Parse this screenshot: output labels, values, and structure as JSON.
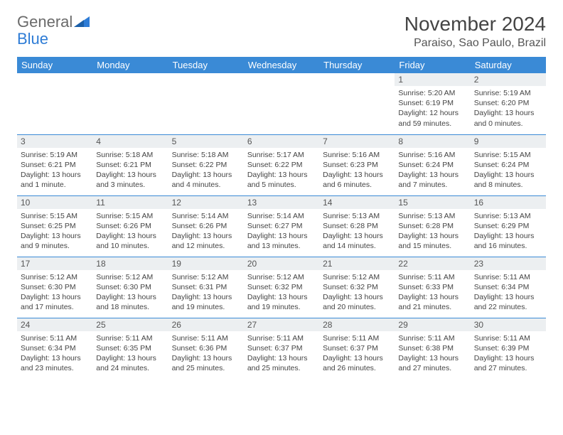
{
  "brand": {
    "part1": "General",
    "part2": "Blue"
  },
  "title": "November 2024",
  "location": "Paraiso, Sao Paulo, Brazil",
  "colors": {
    "header_bg": "#3a8ad6",
    "header_text": "#ffffff",
    "daynum_bg": "#eceff1",
    "border": "#3a8ad6",
    "brand_gray": "#6a6a6a",
    "brand_blue": "#2e7cd6"
  },
  "weekdays": [
    "Sunday",
    "Monday",
    "Tuesday",
    "Wednesday",
    "Thursday",
    "Friday",
    "Saturday"
  ],
  "weeks": [
    [
      {
        "n": "",
        "sr": "",
        "ss": "",
        "dl": "",
        "empty": true
      },
      {
        "n": "",
        "sr": "",
        "ss": "",
        "dl": "",
        "empty": true
      },
      {
        "n": "",
        "sr": "",
        "ss": "",
        "dl": "",
        "empty": true
      },
      {
        "n": "",
        "sr": "",
        "ss": "",
        "dl": "",
        "empty": true
      },
      {
        "n": "",
        "sr": "",
        "ss": "",
        "dl": "",
        "empty": true
      },
      {
        "n": "1",
        "sr": "Sunrise: 5:20 AM",
        "ss": "Sunset: 6:19 PM",
        "dl": "Daylight: 12 hours and 59 minutes."
      },
      {
        "n": "2",
        "sr": "Sunrise: 5:19 AM",
        "ss": "Sunset: 6:20 PM",
        "dl": "Daylight: 13 hours and 0 minutes."
      }
    ],
    [
      {
        "n": "3",
        "sr": "Sunrise: 5:19 AM",
        "ss": "Sunset: 6:21 PM",
        "dl": "Daylight: 13 hours and 1 minute."
      },
      {
        "n": "4",
        "sr": "Sunrise: 5:18 AM",
        "ss": "Sunset: 6:21 PM",
        "dl": "Daylight: 13 hours and 3 minutes."
      },
      {
        "n": "5",
        "sr": "Sunrise: 5:18 AM",
        "ss": "Sunset: 6:22 PM",
        "dl": "Daylight: 13 hours and 4 minutes."
      },
      {
        "n": "6",
        "sr": "Sunrise: 5:17 AM",
        "ss": "Sunset: 6:22 PM",
        "dl": "Daylight: 13 hours and 5 minutes."
      },
      {
        "n": "7",
        "sr": "Sunrise: 5:16 AM",
        "ss": "Sunset: 6:23 PM",
        "dl": "Daylight: 13 hours and 6 minutes."
      },
      {
        "n": "8",
        "sr": "Sunrise: 5:16 AM",
        "ss": "Sunset: 6:24 PM",
        "dl": "Daylight: 13 hours and 7 minutes."
      },
      {
        "n": "9",
        "sr": "Sunrise: 5:15 AM",
        "ss": "Sunset: 6:24 PM",
        "dl": "Daylight: 13 hours and 8 minutes."
      }
    ],
    [
      {
        "n": "10",
        "sr": "Sunrise: 5:15 AM",
        "ss": "Sunset: 6:25 PM",
        "dl": "Daylight: 13 hours and 9 minutes."
      },
      {
        "n": "11",
        "sr": "Sunrise: 5:15 AM",
        "ss": "Sunset: 6:26 PM",
        "dl": "Daylight: 13 hours and 10 minutes."
      },
      {
        "n": "12",
        "sr": "Sunrise: 5:14 AM",
        "ss": "Sunset: 6:26 PM",
        "dl": "Daylight: 13 hours and 12 minutes."
      },
      {
        "n": "13",
        "sr": "Sunrise: 5:14 AM",
        "ss": "Sunset: 6:27 PM",
        "dl": "Daylight: 13 hours and 13 minutes."
      },
      {
        "n": "14",
        "sr": "Sunrise: 5:13 AM",
        "ss": "Sunset: 6:28 PM",
        "dl": "Daylight: 13 hours and 14 minutes."
      },
      {
        "n": "15",
        "sr": "Sunrise: 5:13 AM",
        "ss": "Sunset: 6:28 PM",
        "dl": "Daylight: 13 hours and 15 minutes."
      },
      {
        "n": "16",
        "sr": "Sunrise: 5:13 AM",
        "ss": "Sunset: 6:29 PM",
        "dl": "Daylight: 13 hours and 16 minutes."
      }
    ],
    [
      {
        "n": "17",
        "sr": "Sunrise: 5:12 AM",
        "ss": "Sunset: 6:30 PM",
        "dl": "Daylight: 13 hours and 17 minutes."
      },
      {
        "n": "18",
        "sr": "Sunrise: 5:12 AM",
        "ss": "Sunset: 6:30 PM",
        "dl": "Daylight: 13 hours and 18 minutes."
      },
      {
        "n": "19",
        "sr": "Sunrise: 5:12 AM",
        "ss": "Sunset: 6:31 PM",
        "dl": "Daylight: 13 hours and 19 minutes."
      },
      {
        "n": "20",
        "sr": "Sunrise: 5:12 AM",
        "ss": "Sunset: 6:32 PM",
        "dl": "Daylight: 13 hours and 19 minutes."
      },
      {
        "n": "21",
        "sr": "Sunrise: 5:12 AM",
        "ss": "Sunset: 6:32 PM",
        "dl": "Daylight: 13 hours and 20 minutes."
      },
      {
        "n": "22",
        "sr": "Sunrise: 5:11 AM",
        "ss": "Sunset: 6:33 PM",
        "dl": "Daylight: 13 hours and 21 minutes."
      },
      {
        "n": "23",
        "sr": "Sunrise: 5:11 AM",
        "ss": "Sunset: 6:34 PM",
        "dl": "Daylight: 13 hours and 22 minutes."
      }
    ],
    [
      {
        "n": "24",
        "sr": "Sunrise: 5:11 AM",
        "ss": "Sunset: 6:34 PM",
        "dl": "Daylight: 13 hours and 23 minutes."
      },
      {
        "n": "25",
        "sr": "Sunrise: 5:11 AM",
        "ss": "Sunset: 6:35 PM",
        "dl": "Daylight: 13 hours and 24 minutes."
      },
      {
        "n": "26",
        "sr": "Sunrise: 5:11 AM",
        "ss": "Sunset: 6:36 PM",
        "dl": "Daylight: 13 hours and 25 minutes."
      },
      {
        "n": "27",
        "sr": "Sunrise: 5:11 AM",
        "ss": "Sunset: 6:37 PM",
        "dl": "Daylight: 13 hours and 25 minutes."
      },
      {
        "n": "28",
        "sr": "Sunrise: 5:11 AM",
        "ss": "Sunset: 6:37 PM",
        "dl": "Daylight: 13 hours and 26 minutes."
      },
      {
        "n": "29",
        "sr": "Sunrise: 5:11 AM",
        "ss": "Sunset: 6:38 PM",
        "dl": "Daylight: 13 hours and 27 minutes."
      },
      {
        "n": "30",
        "sr": "Sunrise: 5:11 AM",
        "ss": "Sunset: 6:39 PM",
        "dl": "Daylight: 13 hours and 27 minutes."
      }
    ]
  ]
}
